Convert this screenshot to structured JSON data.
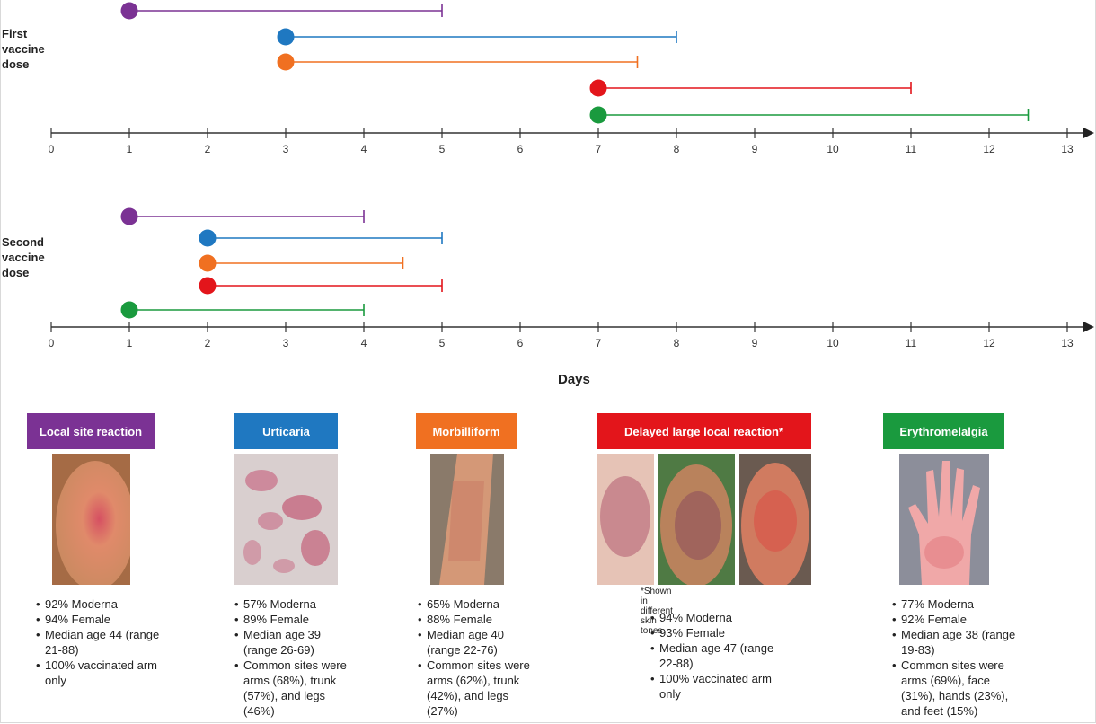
{
  "chart_data": {
    "type": "timeline",
    "xlabel": "Days",
    "xlim": [
      0,
      13
    ],
    "ticks": [
      0,
      1,
      2,
      3,
      4,
      5,
      6,
      7,
      8,
      9,
      10,
      11,
      12,
      13
    ],
    "panels": [
      {
        "label": "First\nvaccine\ndose",
        "bars": [
          {
            "category": "Local site reaction",
            "start": 1,
            "end": 5,
            "color": "#7b3294"
          },
          {
            "category": "Urticaria",
            "start": 3,
            "end": 8,
            "color": "#1f78c1"
          },
          {
            "category": "Morbilliform",
            "start": 3,
            "end": 7.5,
            "color": "#f07021"
          },
          {
            "category": "Delayed large local reaction",
            "start": 7,
            "end": 11,
            "color": "#e3151b"
          },
          {
            "category": "Erythromelalgia",
            "start": 7,
            "end": 12.5,
            "color": "#1a9a3e"
          }
        ]
      },
      {
        "label": "Second\nvaccine\ndose",
        "bars": [
          {
            "category": "Local site reaction",
            "start": 1,
            "end": 4,
            "color": "#7b3294"
          },
          {
            "category": "Urticaria",
            "start": 2,
            "end": 5,
            "color": "#1f78c1"
          },
          {
            "category": "Morbilliform",
            "start": 2,
            "end": 4.5,
            "color": "#f07021"
          },
          {
            "category": "Delayed large local reaction",
            "start": 2,
            "end": 5,
            "color": "#e3151b"
          },
          {
            "category": "Erythromelalgia",
            "start": 1,
            "end": 4,
            "color": "#1a9a3e"
          }
        ]
      }
    ]
  },
  "categories": [
    {
      "title": "Local site reaction",
      "color": "#7b3294",
      "photos": 1,
      "bullets": [
        "92% Moderna",
        "94% Female",
        "Median age 44 (range 21-88)",
        "100% vaccinated arm only"
      ]
    },
    {
      "title": "Urticaria",
      "color": "#1f78c1",
      "photos": 1,
      "bullets": [
        "57% Moderna",
        "89% Female",
        "Median age 39 (range 26-69)",
        "Common sites were arms (68%), trunk (57%), and legs (46%)"
      ]
    },
    {
      "title": "Morbilliform",
      "color": "#f07021",
      "photos": 1,
      "bullets": [
        "65% Moderna",
        "88% Female",
        "Median age 40 (range 22-76)",
        "Common sites were arms (62%), trunk (42%), and legs (27%)"
      ]
    },
    {
      "title": "Delayed large local reaction*",
      "color": "#e3151b",
      "photos": 3,
      "footnote": "*Shown in different skin tones",
      "bullets": [
        "94% Moderna",
        "93% Female",
        "Median age 47 (range 22-88)",
        "100% vaccinated arm only"
      ]
    },
    {
      "title": "Erythromelalgia",
      "color": "#1a9a3e",
      "photos": 1,
      "bullets": [
        "77% Moderna",
        "92% Female",
        "Median age 38 (range 19-83)",
        "Common sites were arms (69%), face (31%), hands (23%), and feet (15%)"
      ]
    }
  ]
}
